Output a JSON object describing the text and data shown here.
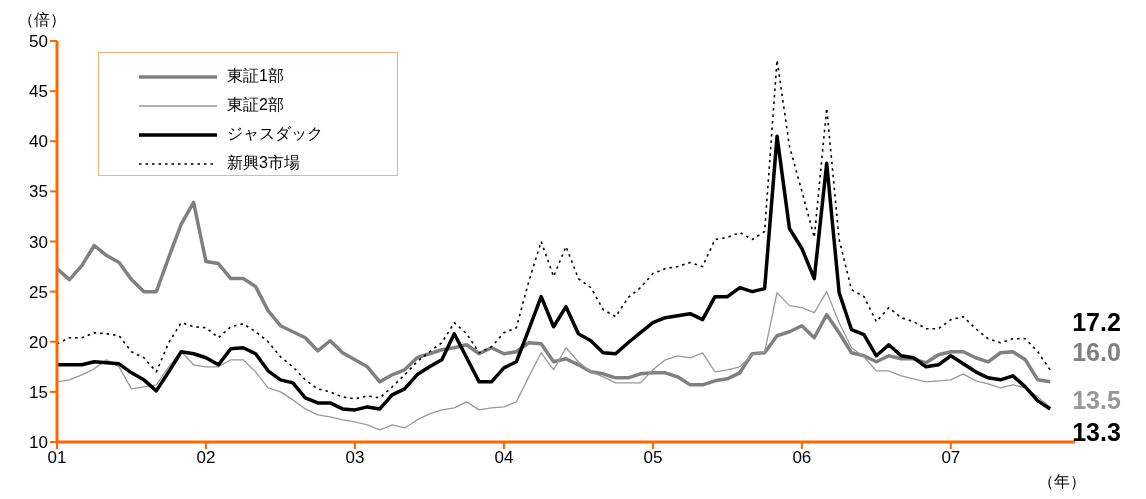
{
  "chart_data": {
    "type": "line",
    "ylabel": "（倍）",
    "xlabel": "（年）",
    "x": [
      "2001-01",
      "2001-02",
      "2001-03",
      "2001-04",
      "2001-05",
      "2001-06",
      "2001-07",
      "2001-08",
      "2001-09",
      "2001-10",
      "2001-11",
      "2001-12",
      "2002-01",
      "2002-02",
      "2002-03",
      "2002-04",
      "2002-05",
      "2002-06",
      "2002-07",
      "2002-08",
      "2002-09",
      "2002-10",
      "2002-11",
      "2002-12",
      "2003-01",
      "2003-02",
      "2003-03",
      "2003-04",
      "2003-05",
      "2003-06",
      "2003-07",
      "2003-08",
      "2003-09",
      "2003-10",
      "2003-11",
      "2003-12",
      "2004-01",
      "2004-02",
      "2004-03",
      "2004-04",
      "2004-05",
      "2004-06",
      "2004-07",
      "2004-08",
      "2004-09",
      "2004-10",
      "2004-11",
      "2004-12",
      "2005-01",
      "2005-02",
      "2005-03",
      "2005-04",
      "2005-05",
      "2005-06",
      "2005-07",
      "2005-08",
      "2005-09",
      "2005-10",
      "2005-11",
      "2005-12",
      "2006-01",
      "2006-02",
      "2006-03",
      "2006-04",
      "2006-05",
      "2006-06",
      "2006-07",
      "2006-08",
      "2006-09",
      "2006-10",
      "2006-11",
      "2006-12",
      "2007-01",
      "2007-02",
      "2007-03",
      "2007-04",
      "2007-05",
      "2007-06",
      "2007-07",
      "2007-08",
      "2007-09"
    ],
    "xlim": [
      "2001-01",
      "2007-11"
    ],
    "xticks": [
      {
        "value": "2001-01",
        "label": "01"
      },
      {
        "value": "2002-01",
        "label": "02"
      },
      {
        "value": "2003-01",
        "label": "03"
      },
      {
        "value": "2004-01",
        "label": "04"
      },
      {
        "value": "2005-01",
        "label": "05"
      },
      {
        "value": "2006-01",
        "label": "06"
      },
      {
        "value": "2007-01",
        "label": "07"
      }
    ],
    "ylim": [
      10,
      50
    ],
    "yticks": [
      10,
      15,
      20,
      25,
      30,
      35,
      40,
      45,
      50
    ],
    "legend": "top left",
    "series": [
      {
        "name": "東証1部",
        "color": "#808080",
        "line_style": "solid",
        "values": [
          27.3,
          26.2,
          27.6,
          29.6,
          28.6,
          27.9,
          26.2,
          25.0,
          25.0,
          28.4,
          31.7,
          33.9,
          28.0,
          27.8,
          26.3,
          26.3,
          25.5,
          23.1,
          21.6,
          21.0,
          20.4,
          19.1,
          20.1,
          18.9,
          18.2,
          17.5,
          16.0,
          16.7,
          17.2,
          18.4,
          18.8,
          19.2,
          19.4,
          19.7,
          18.8,
          19.4,
          18.8,
          19.0,
          19.9,
          19.8,
          18.0,
          18.3,
          17.7,
          17.0,
          16.8,
          16.4,
          16.4,
          16.8,
          16.9,
          16.9,
          16.5,
          15.7,
          15.7,
          16.1,
          16.3,
          16.9,
          18.8,
          18.9,
          20.6,
          21.0,
          21.6,
          20.4,
          22.7,
          20.9,
          18.9,
          18.6,
          18.0,
          18.6,
          18.3,
          18.3,
          17.9,
          18.7,
          19.0,
          19.0,
          18.4,
          18.0,
          18.9,
          19.0,
          18.2,
          16.2,
          16.0
        ],
        "value_labels": [
          null,
          null,
          null,
          null,
          null,
          null,
          null,
          null,
          null,
          null,
          null,
          null,
          null,
          null,
          null,
          null,
          null,
          null,
          null,
          null,
          null,
          null,
          null,
          null,
          null,
          null,
          null,
          null,
          null,
          null,
          null,
          null,
          null,
          null,
          null,
          null,
          null,
          null,
          null,
          null,
          null,
          null,
          null,
          null,
          null,
          null,
          null,
          null,
          null,
          null,
          null,
          null,
          null,
          null,
          null,
          null,
          null,
          null,
          null,
          null,
          null,
          null,
          null,
          null,
          null,
          null,
          null,
          null,
          null,
          null,
          null,
          null,
          null,
          null,
          null,
          null,
          null,
          null,
          null,
          null,
          "16.0"
        ]
      },
      {
        "name": "東証2部",
        "color": "#999999",
        "line_style": "solid",
        "values": [
          16.0,
          16.2,
          16.7,
          17.3,
          18.2,
          17.5,
          15.3,
          15.5,
          15.7,
          17.5,
          19.0,
          17.7,
          17.5,
          17.5,
          18.2,
          18.2,
          17.0,
          15.4,
          15.0,
          14.2,
          13.3,
          12.7,
          12.5,
          12.2,
          12.0,
          11.7,
          11.2,
          11.7,
          11.4,
          12.2,
          12.8,
          13.2,
          13.4,
          14.0,
          13.2,
          13.4,
          13.5,
          14.0,
          16.5,
          18.9,
          17.2,
          19.4,
          18.0,
          17.0,
          16.5,
          15.9,
          15.9,
          15.9,
          17.2,
          18.2,
          18.6,
          18.4,
          18.9,
          17.0,
          17.2,
          17.5,
          18.7,
          19.0,
          24.9,
          23.6,
          23.4,
          22.9,
          25.0,
          21.9,
          19.4,
          18.5,
          17.1,
          17.1,
          16.6,
          16.3,
          16.0,
          16.1,
          16.2,
          16.8,
          16.1,
          15.8,
          15.4,
          15.7,
          15.4,
          14.5,
          13.5
        ],
        "value_labels": [
          null,
          null,
          null,
          null,
          null,
          null,
          null,
          null,
          null,
          null,
          null,
          null,
          null,
          null,
          null,
          null,
          null,
          null,
          null,
          null,
          null,
          null,
          null,
          null,
          null,
          null,
          null,
          null,
          null,
          null,
          null,
          null,
          null,
          null,
          null,
          null,
          null,
          null,
          null,
          null,
          null,
          null,
          null,
          null,
          null,
          null,
          null,
          null,
          null,
          null,
          null,
          null,
          null,
          null,
          null,
          null,
          null,
          null,
          null,
          null,
          null,
          null,
          null,
          null,
          null,
          null,
          null,
          null,
          null,
          null,
          null,
          null,
          null,
          null,
          null,
          null,
          null,
          null,
          null,
          null,
          "13.5"
        ]
      },
      {
        "name": "ジャスダック",
        "color": "#000000",
        "line_style": "solid",
        "values": [
          17.7,
          17.7,
          17.7,
          18.0,
          17.9,
          17.8,
          16.9,
          16.2,
          15.1,
          17.0,
          19.0,
          18.8,
          18.4,
          17.7,
          19.3,
          19.4,
          18.8,
          17.1,
          16.2,
          15.9,
          14.4,
          13.9,
          13.9,
          13.3,
          13.2,
          13.5,
          13.3,
          14.7,
          15.3,
          16.7,
          17.5,
          18.2,
          20.8,
          18.4,
          16.0,
          16.0,
          17.4,
          18.0,
          21.2,
          24.5,
          21.5,
          23.5,
          20.8,
          20.1,
          18.9,
          18.8,
          19.9,
          20.9,
          21.9,
          22.4,
          22.6,
          22.8,
          22.2,
          24.5,
          24.5,
          25.4,
          25.0,
          25.3,
          40.5,
          31.3,
          29.3,
          26.3,
          37.8,
          24.9,
          21.2,
          20.7,
          18.6,
          19.7,
          18.6,
          18.4,
          17.5,
          17.7,
          18.6,
          17.8,
          17.0,
          16.4,
          16.2,
          16.6,
          15.5,
          14.1,
          13.3
        ],
        "value_labels": [
          null,
          null,
          null,
          null,
          null,
          null,
          null,
          null,
          null,
          null,
          null,
          null,
          null,
          null,
          null,
          null,
          null,
          null,
          null,
          null,
          null,
          null,
          null,
          null,
          null,
          null,
          null,
          null,
          null,
          null,
          null,
          null,
          null,
          null,
          null,
          null,
          null,
          null,
          null,
          null,
          null,
          null,
          null,
          null,
          null,
          null,
          null,
          null,
          null,
          null,
          null,
          null,
          null,
          null,
          null,
          null,
          null,
          null,
          null,
          null,
          null,
          null,
          null,
          null,
          null,
          null,
          null,
          null,
          null,
          null,
          null,
          null,
          null,
          null,
          null,
          null,
          null,
          null,
          null,
          null,
          "13.3"
        ]
      },
      {
        "name": "新興3市場",
        "color": "#000000",
        "line_style": "dotted",
        "values": [
          19.8,
          20.4,
          20.4,
          20.9,
          20.8,
          20.6,
          19.0,
          18.4,
          17.0,
          19.9,
          21.9,
          21.5,
          21.4,
          20.4,
          21.5,
          21.8,
          21.0,
          20.0,
          18.5,
          17.5,
          16.2,
          15.3,
          15.0,
          14.5,
          14.3,
          14.6,
          14.4,
          15.5,
          16.7,
          18.0,
          19.0,
          19.9,
          21.9,
          20.8,
          18.9,
          19.5,
          20.9,
          21.4,
          26.0,
          30.0,
          26.5,
          29.5,
          26.3,
          25.4,
          23.2,
          22.5,
          24.4,
          25.4,
          26.8,
          27.3,
          27.5,
          27.9,
          27.5,
          30.2,
          30.4,
          30.9,
          30.2,
          31.0,
          48.1,
          39.5,
          35.0,
          30.4,
          43.3,
          30.2,
          25.2,
          24.5,
          22.0,
          23.4,
          22.4,
          22.0,
          21.3,
          21.3,
          22.2,
          22.5,
          21.3,
          20.3,
          19.9,
          20.3,
          20.3,
          19.0,
          17.2
        ],
        "value_labels": [
          null,
          null,
          null,
          null,
          null,
          null,
          null,
          null,
          null,
          null,
          null,
          null,
          null,
          null,
          null,
          null,
          null,
          null,
          null,
          null,
          null,
          null,
          null,
          null,
          null,
          null,
          null,
          null,
          null,
          null,
          null,
          null,
          null,
          null,
          null,
          null,
          null,
          null,
          null,
          null,
          null,
          null,
          null,
          null,
          null,
          null,
          null,
          null,
          null,
          null,
          null,
          null,
          null,
          null,
          null,
          null,
          null,
          null,
          null,
          null,
          null,
          null,
          null,
          null,
          null,
          null,
          null,
          null,
          null,
          null,
          null,
          null,
          null,
          null,
          null,
          null,
          null,
          null,
          null,
          null,
          "17.2"
        ]
      }
    ]
  }
}
